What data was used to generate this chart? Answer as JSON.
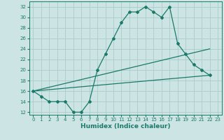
{
  "title": "",
  "xlabel": "Humidex (Indice chaleur)",
  "background_color": "#cde4e4",
  "grid_color": "#aacccc",
  "line_color": "#1a7a6a",
  "xlim": [
    -0.5,
    23.5
  ],
  "ylim": [
    11.5,
    33
  ],
  "xticks": [
    0,
    1,
    2,
    3,
    4,
    5,
    6,
    7,
    8,
    9,
    10,
    11,
    12,
    13,
    14,
    15,
    16,
    17,
    18,
    19,
    20,
    21,
    22,
    23
  ],
  "yticks": [
    12,
    14,
    16,
    18,
    20,
    22,
    24,
    26,
    28,
    30,
    32
  ],
  "line1_x": [
    0,
    1,
    2,
    3,
    4,
    5,
    6,
    7,
    8,
    9,
    10,
    11,
    12,
    13,
    14,
    15,
    16,
    17,
    18,
    19,
    20,
    21,
    22
  ],
  "line1_y": [
    16,
    15,
    14,
    14,
    14,
    12,
    12,
    14,
    20,
    23,
    26,
    29,
    31,
    31,
    32,
    31,
    30,
    32,
    25,
    23,
    21,
    20,
    19
  ],
  "line2_x": [
    0,
    22
  ],
  "line2_y": [
    16,
    24
  ],
  "line3_x": [
    0,
    22
  ],
  "line3_y": [
    16,
    19
  ]
}
